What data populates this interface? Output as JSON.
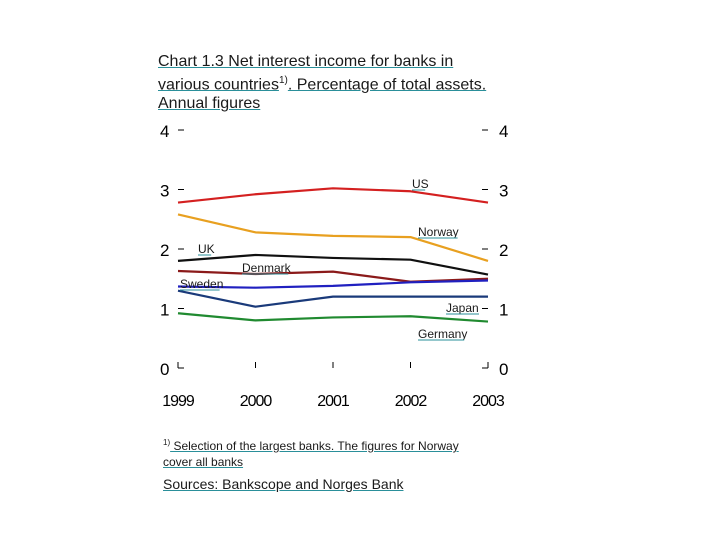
{
  "title": {
    "part1": "Chart 1.3 Net interest income for banks in various countries",
    "sup": "1)",
    "part2": ". Percentage of total assets. Annual figures"
  },
  "chart_data": {
    "type": "line",
    "x": [
      1999,
      2000,
      2001,
      2002,
      2003
    ],
    "ylim": [
      0,
      4
    ],
    "yticks": [
      "0",
      "1",
      "2",
      "3",
      "4"
    ],
    "xticks": [
      "1999",
      "2000",
      "2001",
      "2002",
      "2003"
    ],
    "grid": false,
    "series": [
      {
        "name": "US",
        "color": "#d42020",
        "values": [
          2.78,
          2.92,
          3.02,
          2.97,
          2.78
        ]
      },
      {
        "name": "Norway",
        "color": "#e8a020",
        "values": [
          2.58,
          2.28,
          2.22,
          2.2,
          1.8
        ]
      },
      {
        "name": "UK",
        "color": "#101010",
        "values": [
          1.8,
          1.9,
          1.85,
          1.82,
          1.57
        ]
      },
      {
        "name": "Denmark",
        "color": "#8b1a1a",
        "values": [
          1.63,
          1.58,
          1.62,
          1.45,
          1.5
        ]
      },
      {
        "name": "Sweden",
        "color": "#2020c0",
        "values": [
          1.37,
          1.35,
          1.38,
          1.44,
          1.47
        ]
      },
      {
        "name": "Japan",
        "color": "#1a3a7a",
        "values": [
          1.3,
          1.03,
          1.2,
          1.2,
          1.2
        ]
      },
      {
        "name": "Germany",
        "color": "#208a30",
        "values": [
          0.92,
          0.8,
          0.85,
          0.87,
          0.78
        ]
      }
    ]
  },
  "footnote": {
    "sup": "1)",
    "text": " Selection of the largest banks. The figures for Norway cover all banks"
  },
  "sources": "Sources: Bankscope and Norges Bank"
}
